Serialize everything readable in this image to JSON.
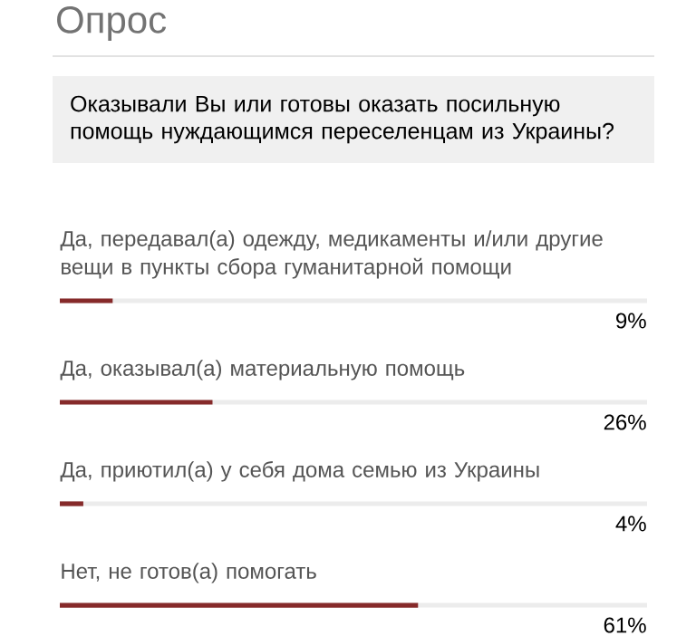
{
  "chart_data": {
    "type": "bar",
    "orientation": "horizontal",
    "title": "Опрос",
    "subtitle": "Оказывали Вы или готовы оказать посильную помощь нуждающимся переселенцам из Украины?",
    "categories": [
      "Да, передавал(а) одежду, медикаменты и/или другие вещи в пункты сбора гуманитарной помощи",
      "Да, оказывал(а) материальную помощь",
      "Да, приютил(а) у себя дома семью из Украины",
      "Нет, не готов(а) помогать"
    ],
    "values": [
      9,
      26,
      4,
      61
    ],
    "value_labels": [
      "9%",
      "26%",
      "4%",
      "61%"
    ],
    "color": "#862a2a",
    "xlim": [
      0,
      100
    ]
  }
}
